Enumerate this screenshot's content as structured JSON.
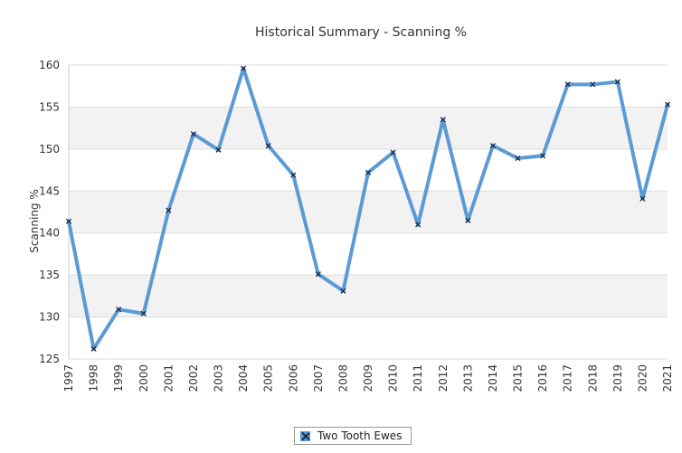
{
  "chart_data": {
    "type": "line",
    "title": "Historical Summary - Scanning %",
    "xlabel": "",
    "ylabel": "Scanning %",
    "ylim": [
      125,
      160
    ],
    "yticks": [
      125,
      130,
      135,
      140,
      145,
      150,
      155,
      160
    ],
    "grid": "horizontal bands",
    "legend_position": "bottom-center",
    "categories": [
      "1997",
      "1998",
      "1999",
      "2000",
      "2001",
      "2002",
      "2003",
      "2004",
      "2005",
      "2006",
      "2007",
      "2008",
      "2009",
      "2010",
      "2011",
      "2012",
      "2013",
      "2014",
      "2015",
      "2016",
      "2017",
      "2018",
      "2019",
      "2020",
      "2021"
    ],
    "series": [
      {
        "name": "Two Tooth Ewes",
        "color": "#5b9bd5",
        "marker_color": "#1b2a44",
        "values": [
          141.4,
          126.2,
          130.9,
          130.4,
          142.7,
          151.8,
          149.9,
          159.6,
          150.4,
          146.9,
          135.1,
          133.1,
          147.2,
          149.6,
          141.0,
          153.5,
          141.5,
          150.4,
          148.9,
          149.2,
          157.7,
          157.7,
          158.0,
          144.1,
          155.3
        ]
      }
    ]
  },
  "legend": {
    "label": "Two Tooth Ewes"
  }
}
